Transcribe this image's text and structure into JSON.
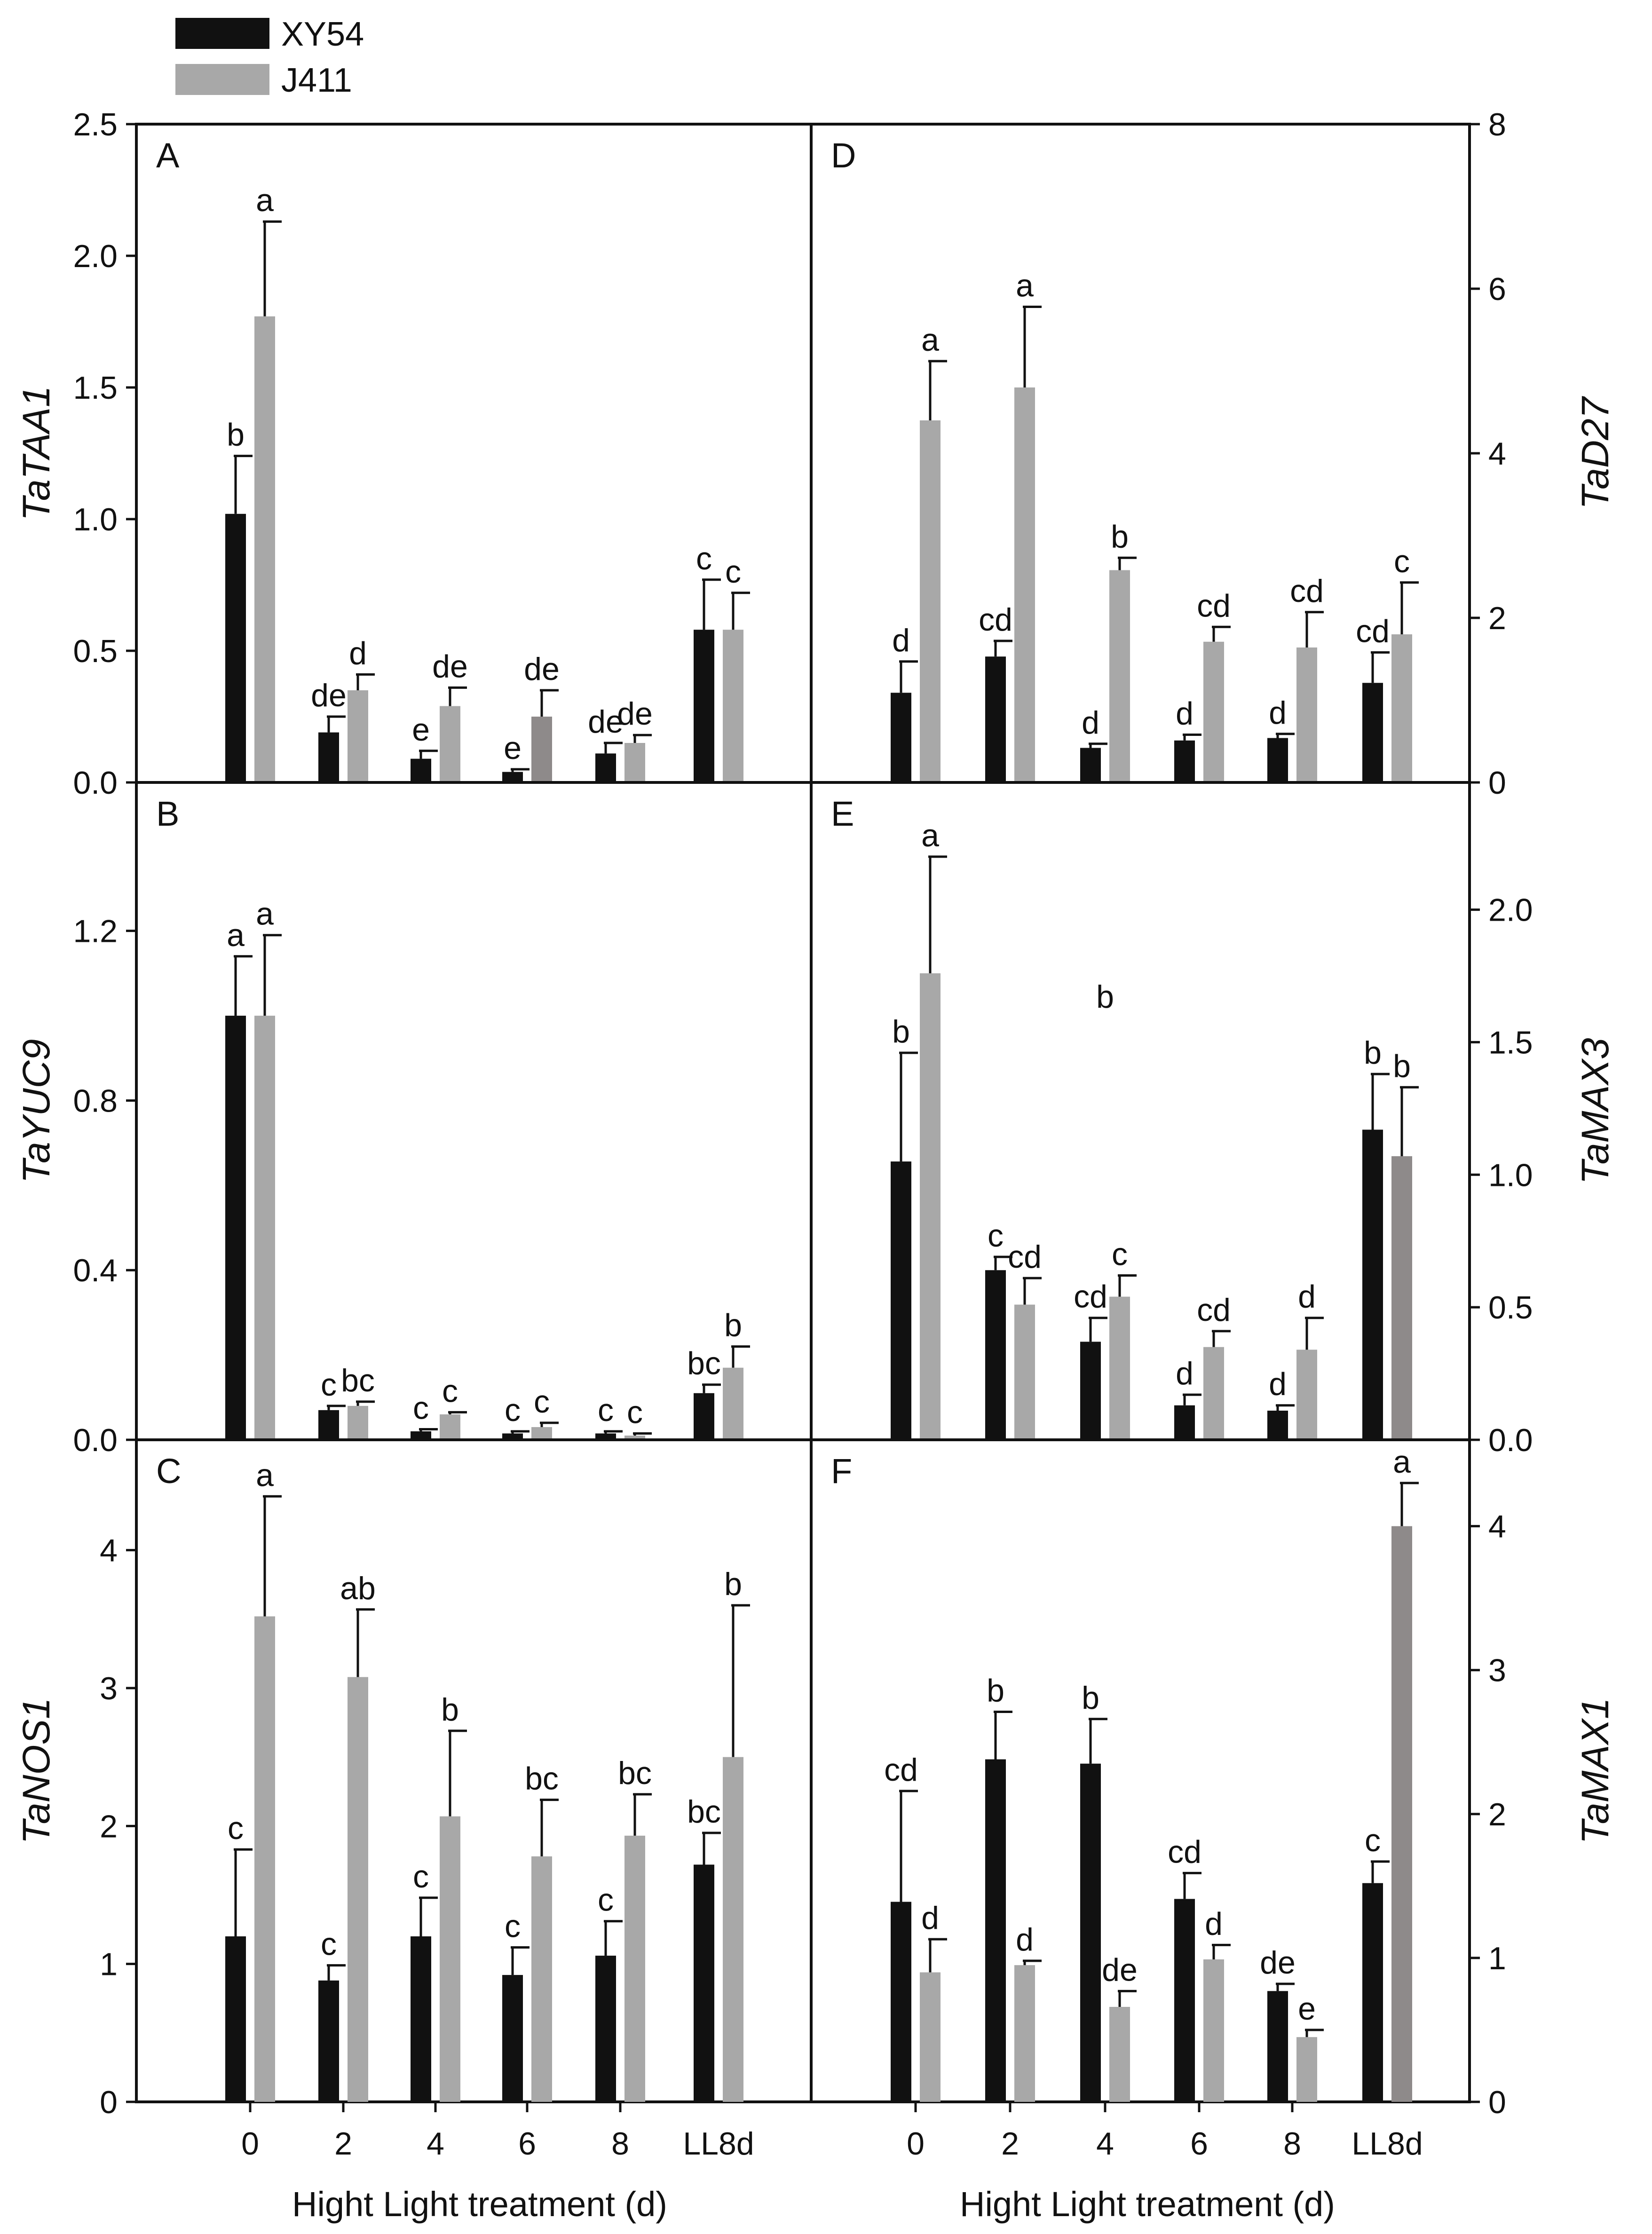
{
  "legend": [
    {
      "name": "XY54",
      "color": "#111111"
    },
    {
      "name": "J411",
      "color": "#a8a8a8"
    }
  ],
  "colors": {
    "xy54": "#111111",
    "j411": "#a8a8a8",
    "j411_alt": "#8e8a8a"
  },
  "x_axis": {
    "title": "Hight Light treatment (d)",
    "categories": [
      "0",
      "2",
      "4",
      "6",
      "8",
      "LL8d"
    ]
  },
  "chart_data": [
    {
      "panel": "A",
      "type": "bar",
      "ylabel": "TaTAA1",
      "axis_side": "left",
      "ylim": [
        0,
        2.5
      ],
      "ticks": [
        "0.0",
        "0.5",
        "1.0",
        "1.5",
        "2.0",
        "2.5"
      ],
      "categories": [
        "0",
        "2",
        "4",
        "6",
        "8",
        "LL8d"
      ],
      "series": [
        {
          "name": "XY54",
          "values": [
            1.02,
            0.19,
            0.09,
            0.04,
            0.11,
            0.58
          ],
          "errors": [
            0.22,
            0.06,
            0.03,
            0.01,
            0.04,
            0.19
          ],
          "labels": [
            "b",
            "de",
            "e",
            "e",
            "de",
            "c"
          ]
        },
        {
          "name": "J411",
          "values": [
            1.77,
            0.35,
            0.29,
            0.25,
            0.15,
            0.58
          ],
          "errors": [
            0.36,
            0.06,
            0.07,
            0.1,
            0.03,
            0.14
          ],
          "labels": [
            "a",
            "d",
            "de",
            "de",
            "de",
            "c"
          ]
        }
      ]
    },
    {
      "panel": "B",
      "type": "bar",
      "ylabel": "TaYUC9",
      "axis_side": "left",
      "ylim": [
        0,
        1.55
      ],
      "ticks": [
        "0.0",
        "0.4",
        "0.8",
        "1.2"
      ],
      "categories": [
        "0",
        "2",
        "4",
        "6",
        "8",
        "LL8d"
      ],
      "series": [
        {
          "name": "XY54",
          "values": [
            1.0,
            0.07,
            0.02,
            0.015,
            0.015,
            0.11
          ],
          "errors": [
            0.14,
            0.01,
            0.005,
            0.005,
            0.005,
            0.02
          ],
          "labels": [
            "a",
            "c",
            "c",
            "c",
            "c",
            "bc"
          ]
        },
        {
          "name": "J411",
          "values": [
            1.0,
            0.08,
            0.06,
            0.03,
            0.01,
            0.17
          ],
          "errors": [
            0.19,
            0.01,
            0.005,
            0.01,
            0.005,
            0.05
          ],
          "labels": [
            "a",
            "bc",
            "c",
            "c",
            "c",
            "b"
          ]
        }
      ]
    },
    {
      "panel": "C",
      "type": "bar",
      "ylabel": "TaNOS1",
      "axis_side": "left",
      "ylim": [
        0,
        4.8
      ],
      "ticks": [
        "0",
        "1",
        "2",
        "3",
        "4"
      ],
      "categories": [
        "0",
        "2",
        "4",
        "6",
        "8",
        "LL8d"
      ],
      "series": [
        {
          "name": "XY54",
          "values": [
            1.2,
            0.88,
            1.2,
            0.92,
            1.06,
            1.72
          ],
          "errors": [
            0.63,
            0.11,
            0.28,
            0.2,
            0.25,
            0.23
          ],
          "labels": [
            "c",
            "c",
            "c",
            "c",
            "c",
            "bc"
          ]
        },
        {
          "name": "J411",
          "values": [
            3.52,
            3.08,
            2.07,
            1.78,
            1.93,
            2.5
          ],
          "errors": [
            0.87,
            0.49,
            0.62,
            0.41,
            0.3,
            1.1
          ],
          "labels": [
            "a",
            "ab",
            "b",
            "bc",
            "bc",
            "b"
          ]
        }
      ]
    },
    {
      "panel": "D",
      "type": "bar",
      "ylabel": "TaD27",
      "axis_side": "right",
      "ylim": [
        0,
        8
      ],
      "ticks": [
        "0",
        "2",
        "4",
        "6",
        "8"
      ],
      "categories": [
        "0",
        "2",
        "4",
        "6",
        "8",
        "LL8d"
      ],
      "series": [
        {
          "name": "XY54",
          "values": [
            1.09,
            1.53,
            0.42,
            0.51,
            0.54,
            1.21
          ],
          "errors": [
            0.38,
            0.19,
            0.05,
            0.07,
            0.05,
            0.37
          ],
          "labels": [
            "d",
            "cd",
            "d",
            "d",
            "d",
            "cd"
          ]
        },
        {
          "name": "J411",
          "values": [
            4.4,
            4.8,
            2.58,
            1.71,
            1.64,
            1.8
          ],
          "errors": [
            0.72,
            0.98,
            0.15,
            0.18,
            0.43,
            0.63
          ],
          "labels": [
            "a",
            "a",
            "b",
            "cd",
            "cd",
            "c"
          ]
        }
      ]
    },
    {
      "panel": "E",
      "type": "bar",
      "ylabel": "TaMAX3",
      "axis_side": "right",
      "ylim": [
        0,
        2.48
      ],
      "ticks": [
        "0.0",
        "0.5",
        "1.0",
        "1.5",
        "2.0"
      ],
      "categories": [
        "0",
        "2",
        "4",
        "6",
        "8",
        "LL8d"
      ],
      "series": [
        {
          "name": "XY54",
          "values": [
            1.05,
            0.64,
            0.37,
            0.13,
            0.11,
            1.17
          ],
          "errors": [
            0.41,
            0.05,
            0.09,
            0.04,
            0.02,
            0.21
          ],
          "labels": [
            "b",
            "c",
            "cd",
            "d",
            "d",
            "b"
          ]
        },
        {
          "name": "J411",
          "values": [
            1.76,
            0.51,
            0.54,
            0.35,
            0.34,
            1.07
          ],
          "errors": [
            0.44,
            0.1,
            0.08,
            0.06,
            0.12,
            0.26
          ],
          "labels": [
            "a",
            "cd",
            "c",
            "cd",
            "d",
            "b"
          ]
        }
      ],
      "annotations": [
        {
          "text": "b",
          "x": "4",
          "y": 1.63
        }
      ]
    },
    {
      "panel": "F",
      "type": "bar",
      "ylabel": "TaMAX1",
      "axis_side": "right",
      "ylim": [
        0,
        4.6
      ],
      "ticks": [
        "0",
        "1",
        "2",
        "3",
        "4"
      ],
      "categories": [
        "0",
        "2",
        "4",
        "6",
        "8",
        "LL8d"
      ],
      "series": [
        {
          "name": "XY54",
          "values": [
            1.39,
            2.38,
            2.35,
            1.41,
            0.77,
            1.52
          ],
          "errors": [
            0.77,
            0.33,
            0.31,
            0.18,
            0.05,
            0.15
          ],
          "labels": [
            "cd",
            "b",
            "b",
            "cd",
            "de",
            "c"
          ]
        },
        {
          "name": "J411",
          "values": [
            0.9,
            0.95,
            0.66,
            0.99,
            0.45,
            4.0
          ],
          "errors": [
            0.23,
            0.03,
            0.11,
            0.1,
            0.05,
            0.3
          ],
          "labels": [
            "d",
            "d",
            "de",
            "d",
            "e",
            "a"
          ]
        }
      ]
    }
  ]
}
